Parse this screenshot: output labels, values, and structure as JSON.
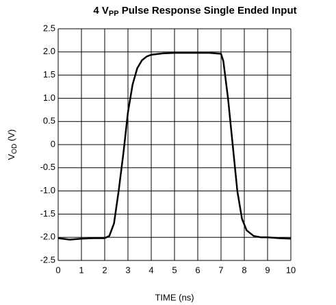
{
  "chart_data": {
    "type": "line",
    "title": {
      "prefix": "4 V",
      "subscript": "PP",
      "suffix": " Pulse Response Single Ended Input"
    },
    "ylabel": {
      "prefix": "V",
      "subscript": "OD",
      "suffix": " (V)"
    },
    "xlabel": "TIME (ns)",
    "x": [
      0,
      0.5,
      1,
      1.5,
      2,
      2.2,
      2.4,
      2.6,
      2.8,
      3.0,
      3.2,
      3.4,
      3.6,
      3.8,
      4.0,
      4.5,
      5,
      5.5,
      6,
      6.5,
      7.0,
      7.1,
      7.3,
      7.5,
      7.7,
      7.9,
      8.1,
      8.4,
      8.7,
      9,
      9.5,
      10
    ],
    "series": [
      {
        "name": "VOD",
        "color": "#000000",
        "values": [
          -2.02,
          -2.05,
          -2.03,
          -2.02,
          -2.02,
          -1.97,
          -1.7,
          -1.0,
          -0.2,
          0.7,
          1.3,
          1.65,
          1.82,
          1.9,
          1.94,
          1.97,
          1.98,
          1.98,
          1.98,
          1.98,
          1.96,
          1.8,
          1.0,
          0.0,
          -1.0,
          -1.6,
          -1.85,
          -1.97,
          -2.0,
          -2.0,
          -2.02,
          -2.03
        ]
      }
    ],
    "xlim": [
      0,
      10
    ],
    "xticks": [
      0,
      1,
      2,
      3,
      4,
      5,
      6,
      7,
      8,
      9,
      10
    ],
    "ylim": [
      -2.5,
      2.5
    ],
    "yticks": [
      -2.5,
      {
        "value": -2,
        "label": "-2.0"
      },
      -1.5,
      {
        "value": -1,
        "label": "-1.0"
      },
      -0.5,
      0,
      0.5,
      {
        "value": 1,
        "label": "1.0"
      },
      1.5,
      {
        "value": 2,
        "label": "2.0"
      },
      2.5
    ],
    "grid": true
  }
}
